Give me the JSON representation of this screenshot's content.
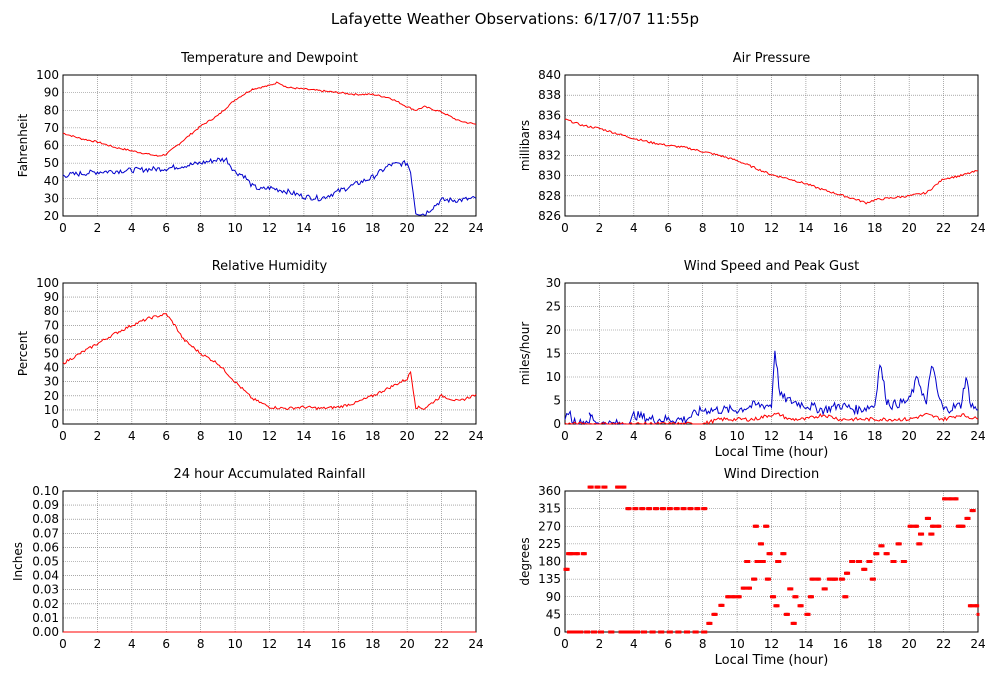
{
  "page_title": "Lafayette Weather Observations: 6/17/07 11:55p",
  "colors": {
    "red": "#ff0000",
    "blue": "#0000cc",
    "grid": "#777777",
    "frame": "#000000"
  },
  "chart_data": [
    {
      "id": "temp",
      "type": "line",
      "title": "Temperature and Dewpoint",
      "ylabel": "Fahrenheit",
      "xlabel": "",
      "xlim": [
        0,
        24
      ],
      "ylim": [
        20,
        100
      ],
      "xticks": [
        0,
        2,
        4,
        6,
        8,
        10,
        12,
        14,
        16,
        18,
        20,
        22,
        24
      ],
      "yticks": [
        20,
        30,
        40,
        50,
        60,
        70,
        80,
        90,
        100
      ],
      "series": [
        {
          "color": "red",
          "noise": 0.5,
          "x": [
            0,
            1,
            2,
            3,
            4,
            5,
            5.5,
            6,
            7,
            8,
            9,
            10,
            11,
            12,
            12.5,
            13,
            14,
            15,
            16,
            17,
            18,
            19,
            20,
            20.5,
            21,
            22,
            23,
            24
          ],
          "y": [
            67,
            64,
            62,
            59,
            57,
            55,
            54,
            55,
            63,
            71,
            77,
            86,
            92,
            94,
            96,
            93,
            92,
            91,
            90,
            89,
            89,
            87,
            82,
            80,
            82,
            79,
            74,
            72
          ]
        },
        {
          "color": "blue",
          "noise": 1.5,
          "x": [
            0,
            2,
            4,
            6,
            8,
            9,
            9.5,
            10,
            10.5,
            11,
            11.5,
            12,
            13,
            14,
            15,
            16,
            17,
            18,
            19,
            20,
            20.2,
            20.5,
            21,
            22,
            23,
            24
          ],
          "y": [
            43,
            45,
            46,
            47,
            50,
            52,
            52,
            45,
            43,
            37,
            35,
            36,
            34,
            31,
            30,
            34,
            38,
            42,
            49,
            50,
            45,
            22,
            21,
            29,
            29,
            30
          ]
        }
      ]
    },
    {
      "id": "pressure",
      "type": "line",
      "title": "Air Pressure",
      "ylabel": "millibars",
      "xlabel": "",
      "xlim": [
        0,
        24
      ],
      "ylim": [
        826,
        840
      ],
      "xticks": [
        0,
        2,
        4,
        6,
        8,
        10,
        12,
        14,
        16,
        18,
        20,
        22,
        24
      ],
      "yticks": [
        826,
        828,
        830,
        832,
        834,
        836,
        838,
        840
      ],
      "series": [
        {
          "color": "red",
          "noise": 0.1,
          "x": [
            0,
            1,
            2,
            3,
            4,
            5,
            6,
            7,
            8,
            9,
            10,
            11,
            12,
            13,
            14,
            15,
            16,
            17,
            17.5,
            18,
            19,
            20,
            21,
            21.5,
            22,
            23,
            24
          ],
          "y": [
            835.6,
            835,
            834.7,
            834.2,
            833.7,
            833.3,
            833,
            832.8,
            832.4,
            832,
            831.5,
            830.8,
            830.1,
            829.7,
            829.2,
            828.6,
            828.1,
            827.6,
            827.3,
            827.6,
            827.8,
            828,
            828.3,
            829,
            829.7,
            830,
            830.5
          ]
        }
      ]
    },
    {
      "id": "humidity",
      "type": "line",
      "title": "Relative Humidity",
      "ylabel": "Percent",
      "xlabel": "",
      "xlim": [
        0,
        24
      ],
      "ylim": [
        0,
        100
      ],
      "xticks": [
        0,
        2,
        4,
        6,
        8,
        10,
        12,
        14,
        16,
        18,
        20,
        22,
        24
      ],
      "yticks": [
        0,
        10,
        20,
        30,
        40,
        50,
        60,
        70,
        80,
        90,
        100
      ],
      "series": [
        {
          "color": "red",
          "noise": 1.0,
          "x": [
            0,
            1,
            2,
            3,
            4,
            5,
            6,
            6.5,
            7,
            8,
            9,
            10,
            11,
            12,
            13,
            14,
            15,
            16,
            17,
            18,
            19,
            20,
            20.2,
            20.5,
            21,
            22,
            23,
            24
          ],
          "y": [
            43,
            50,
            57,
            64,
            70,
            75,
            78,
            70,
            60,
            50,
            43,
            30,
            18,
            12,
            11,
            12,
            11,
            12,
            15,
            20,
            26,
            32,
            37,
            12,
            11,
            20,
            16,
            21
          ]
        }
      ]
    },
    {
      "id": "wind_speed",
      "type": "line",
      "title": "Wind Speed and Peak Gust",
      "ylabel": "miles/hour",
      "xlabel": "Local Time (hour)",
      "xlim": [
        0,
        24
      ],
      "ylim": [
        0,
        30
      ],
      "xticks": [
        0,
        2,
        4,
        6,
        8,
        10,
        12,
        14,
        16,
        18,
        20,
        22,
        24
      ],
      "yticks": [
        0,
        5,
        10,
        15,
        20,
        25,
        30
      ],
      "series": [
        {
          "color": "blue",
          "noise": 1.0,
          "x": [
            0,
            0.2,
            0.4,
            0.8,
            1.5,
            1.4,
            2,
            3,
            3.8,
            4,
            5,
            6,
            7,
            7.5,
            8,
            9,
            10,
            11,
            12,
            12.2,
            12.5,
            13,
            14,
            15,
            16,
            17,
            18,
            18.3,
            18.7,
            19,
            20,
            20.5,
            21,
            21.3,
            21.7,
            22,
            23,
            23.3,
            23.6,
            24
          ],
          "y": [
            0,
            3,
            1,
            0,
            1,
            2,
            0,
            0,
            0,
            2,
            1,
            1,
            1,
            2,
            3,
            3,
            3,
            4,
            4,
            16,
            6,
            5,
            4,
            3,
            4,
            3,
            4,
            13,
            5,
            4,
            5,
            10,
            4,
            13,
            6,
            3,
            4,
            10,
            4,
            3
          ]
        },
        {
          "color": "red",
          "noise": 0.4,
          "x": [
            0,
            8,
            9,
            10,
            11,
            12,
            12.5,
            13,
            14,
            15,
            16,
            17,
            18,
            19,
            20,
            21,
            22,
            23,
            24
          ],
          "y": [
            0,
            0,
            1,
            1,
            1,
            2,
            2,
            1,
            1,
            2,
            1,
            1,
            1,
            1,
            1,
            2,
            1,
            2,
            1
          ]
        }
      ]
    },
    {
      "id": "rain",
      "type": "line",
      "title": "24 hour Accumulated Rainfall",
      "ylabel": "Inches",
      "xlabel": "",
      "xlim": [
        0,
        24
      ],
      "ylim": [
        0,
        0.1
      ],
      "xticks": [
        0,
        2,
        4,
        6,
        8,
        10,
        12,
        14,
        16,
        18,
        20,
        22,
        24
      ],
      "yticks": [
        "0.00",
        "0.01",
        "0.02",
        "0.03",
        "0.04",
        "0.05",
        "0.06",
        "0.07",
        "0.08",
        "0.09",
        "0.10"
      ],
      "series": [
        {
          "color": "red",
          "noise": 0,
          "x": [
            0,
            24
          ],
          "y": [
            0,
            0
          ]
        }
      ]
    },
    {
      "id": "wind_dir",
      "type": "scatter",
      "title": "Wind Direction",
      "ylabel": "degrees",
      "xlabel": "Local Time (hour)",
      "xlim": [
        0,
        24
      ],
      "ylim": [
        0,
        360
      ],
      "xticks": [
        0,
        2,
        4,
        6,
        8,
        10,
        12,
        14,
        16,
        18,
        20,
        22,
        24
      ],
      "yticks": [
        0,
        45,
        90,
        135,
        180,
        225,
        270,
        315,
        360
      ],
      "series": [
        {
          "color": "red",
          "x": [
            0,
            0.15,
            0.3,
            0.6,
            1.0,
            1.4,
            1.8,
            2.2,
            2.6,
            3.0,
            3.3,
            3.6,
            4.0,
            4.4,
            4.8,
            5.2,
            5.6,
            6.0,
            6.4,
            6.8,
            7.2,
            7.6,
            8.0,
            0.2,
            0.5,
            0.8,
            1.2,
            1.6,
            2.0,
            3.2,
            3.5,
            3.8,
            4.1,
            4.5,
            5.0,
            5.5,
            6.0,
            6.5,
            7.0,
            7.5,
            8.0,
            8.3,
            8.6,
            9.0,
            9.4,
            9.7,
            10.0,
            10.3,
            10.6,
            10.9,
            11.1,
            11.3,
            11.6,
            11.8,
            12.0,
            12.3,
            12.6,
            13.0,
            13.3,
            13.6,
            14.0,
            14.3,
            14.6,
            15.0,
            15.3,
            15.6,
            16.0,
            16.3,
            16.6,
            17.0,
            17.3,
            17.6,
            18.0,
            18.3,
            18.6,
            19.0,
            19.3,
            19.6,
            20.0,
            20.3,
            20.6,
            21.0,
            21.3,
            21.6,
            22.0,
            22.3,
            22.6,
            23.0,
            23.3,
            23.6,
            24.0,
            10.5,
            11.0,
            11.4,
            11.7,
            12.2,
            12.8,
            13.2,
            14.2,
            15.5,
            16.2,
            17.8,
            20.5,
            21.2,
            22.8,
            23.5,
            23.8
          ],
          "y": [
            160,
            200,
            200,
            200,
            200,
            370,
            370,
            370,
            0,
            370,
            370,
            315,
            315,
            315,
            315,
            315,
            315,
            315,
            315,
            315,
            315,
            315,
            315,
            0,
            0,
            0,
            0,
            0,
            0,
            0,
            0,
            0,
            0,
            0,
            0,
            0,
            0,
            0,
            0,
            0,
            0,
            22,
            45,
            68,
            90,
            90,
            90,
            112,
            112,
            135,
            180,
            225,
            270,
            200,
            90,
            180,
            200,
            110,
            90,
            67,
            45,
            135,
            135,
            110,
            135,
            135,
            135,
            150,
            180,
            180,
            160,
            180,
            200,
            220,
            200,
            180,
            225,
            180,
            270,
            270,
            250,
            290,
            270,
            270,
            340,
            340,
            340,
            270,
            290,
            310,
            45,
            180,
            270,
            180,
            135,
            67,
            45,
            22,
            90,
            135,
            90,
            135,
            225,
            250,
            270,
            67,
            67
          ]
        }
      ]
    }
  ]
}
